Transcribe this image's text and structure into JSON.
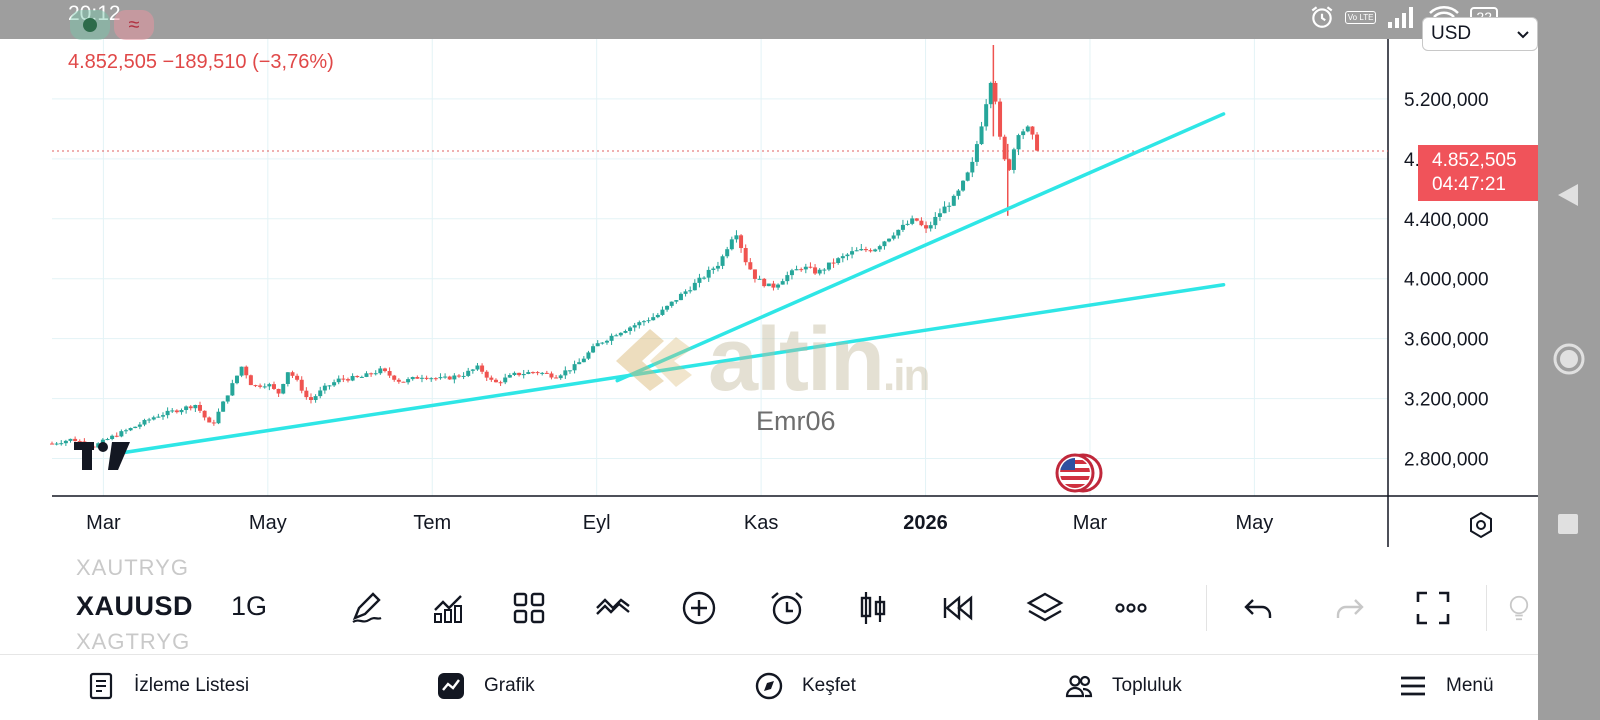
{
  "status_bar": {
    "time": "20:12",
    "battery": "22",
    "lte_badge": "Vo LTE",
    "icons": [
      "alarm-icon",
      "lte-icon",
      "signal-icon",
      "wifi-icon",
      "battery-icon"
    ]
  },
  "system_nav": {
    "icons": [
      "back-triangle-icon",
      "home-circle-icon",
      "recents-square-icon"
    ]
  },
  "chart": {
    "price_summary": "4.852,505  −189,510 (−3,76%)",
    "currency": "USD",
    "last_price": "4.852,505",
    "countdown": "04:47:21",
    "author": "Emr06",
    "watermark_main": "altin",
    "watermark_suffix": ".in",
    "legend_icons": [
      "green-dot-icon",
      "wave-icon"
    ],
    "colors": {
      "up": "#26a69a",
      "down": "#ef5350",
      "trendline": "#2ee6e6",
      "price_label": "#f0535a"
    }
  },
  "chart_data": {
    "type": "candlestick",
    "symbol": "XAUUSD",
    "interval": "1G",
    "currency": "USD",
    "x_tick_labels": [
      "Mar",
      "May",
      "Tem",
      "Eyl",
      "Kas",
      "2026",
      "Mar",
      "May"
    ],
    "y_tick_labels": [
      "5.200,000",
      "4.800,000",
      "4.400,000",
      "4.000,000",
      "3.600,000",
      "3.200,000",
      "2.800,000"
    ],
    "ylim": [
      2550,
      5600
    ],
    "grid": true,
    "last_price": 4852.505,
    "change": -189.51,
    "change_pct": -3.76,
    "price_path": [
      {
        "t": 0,
        "v": 2900
      },
      {
        "t": 2,
        "v": 2930
      },
      {
        "t": 4,
        "v": 2880
      },
      {
        "t": 6,
        "v": 2950
      },
      {
        "t": 8,
        "v": 3010
      },
      {
        "t": 10,
        "v": 3080
      },
      {
        "t": 12,
        "v": 3120
      },
      {
        "t": 14,
        "v": 3160
      },
      {
        "t": 15.5,
        "v": 3010
      },
      {
        "t": 17,
        "v": 3220
      },
      {
        "t": 18.5,
        "v": 3420
      },
      {
        "t": 19.5,
        "v": 3280
      },
      {
        "t": 21,
        "v": 3300
      },
      {
        "t": 22,
        "v": 3230
      },
      {
        "t": 23,
        "v": 3390
      },
      {
        "t": 24,
        "v": 3300
      },
      {
        "t": 25,
        "v": 3180
      },
      {
        "t": 26.5,
        "v": 3270
      },
      {
        "t": 28,
        "v": 3330
      },
      {
        "t": 30,
        "v": 3340
      },
      {
        "t": 32,
        "v": 3390
      },
      {
        "t": 34,
        "v": 3310
      },
      {
        "t": 36,
        "v": 3350
      },
      {
        "t": 38,
        "v": 3330
      },
      {
        "t": 40,
        "v": 3360
      },
      {
        "t": 41.5,
        "v": 3410
      },
      {
        "t": 43,
        "v": 3300
      },
      {
        "t": 45,
        "v": 3360
      },
      {
        "t": 47,
        "v": 3380
      },
      {
        "t": 49,
        "v": 3350
      },
      {
        "t": 51,
        "v": 3420
      },
      {
        "t": 53,
        "v": 3560
      },
      {
        "t": 55,
        "v": 3640
      },
      {
        "t": 57,
        "v": 3700
      },
      {
        "t": 59,
        "v": 3760
      },
      {
        "t": 61,
        "v": 3880
      },
      {
        "t": 63,
        "v": 3990
      },
      {
        "t": 65,
        "v": 4110
      },
      {
        "t": 66.5,
        "v": 4330
      },
      {
        "t": 67.5,
        "v": 4120
      },
      {
        "t": 68.5,
        "v": 4000
      },
      {
        "t": 70,
        "v": 3940
      },
      {
        "t": 71.5,
        "v": 4020
      },
      {
        "t": 73,
        "v": 4080
      },
      {
        "t": 74.5,
        "v": 4040
      },
      {
        "t": 76,
        "v": 4110
      },
      {
        "t": 78,
        "v": 4180
      },
      {
        "t": 80,
        "v": 4200
      },
      {
        "t": 82,
        "v": 4310
      },
      {
        "t": 84,
        "v": 4400
      },
      {
        "t": 85,
        "v": 4320
      },
      {
        "t": 86.5,
        "v": 4450
      },
      {
        "t": 88,
        "v": 4550
      },
      {
        "t": 89.5,
        "v": 4750
      },
      {
        "t": 90.5,
        "v": 5050
      },
      {
        "t": 91.5,
        "v": 5380
      },
      {
        "t": 92.3,
        "v": 4900
      },
      {
        "t": 93,
        "v": 4700
      },
      {
        "t": 94,
        "v": 4980
      },
      {
        "t": 95,
        "v": 5000
      },
      {
        "t": 96,
        "v": 4853
      }
    ],
    "t_range": [
      0,
      130
    ],
    "trendlines": [
      {
        "t1": 7,
        "v1": 2840,
        "t2": 114,
        "v2": 3960
      },
      {
        "t1": 55,
        "v1": 3320,
        "t2": 114,
        "v2": 5100
      }
    ]
  },
  "toolbar": {
    "symbol": "XAUUSD",
    "interval": "1G",
    "faded_above": "XAUTRYG",
    "faded_below": "XAGTRYG",
    "tools": [
      {
        "name": "draw-pencil-icon"
      },
      {
        "name": "indicators-icon"
      },
      {
        "name": "layout-grid-icon"
      },
      {
        "name": "compare-icon"
      },
      {
        "name": "add-circle-icon"
      },
      {
        "name": "alert-clock-icon"
      },
      {
        "name": "candle-type-icon"
      },
      {
        "name": "replay-icon"
      },
      {
        "name": "layers-icon"
      },
      {
        "name": "more-dots-icon"
      },
      {
        "name": "undo-icon"
      },
      {
        "name": "redo-icon"
      },
      {
        "name": "fullscreen-icon"
      }
    ]
  },
  "bottom_nav": {
    "items": [
      {
        "label": "İzleme Listesi",
        "icon": "watchlist-icon"
      },
      {
        "label": "Grafik",
        "icon": "chart-icon"
      },
      {
        "label": "Keşfet",
        "icon": "compass-icon"
      },
      {
        "label": "Topluluk",
        "icon": "community-icon"
      },
      {
        "label": "Menü",
        "icon": "menu-icon"
      }
    ]
  }
}
